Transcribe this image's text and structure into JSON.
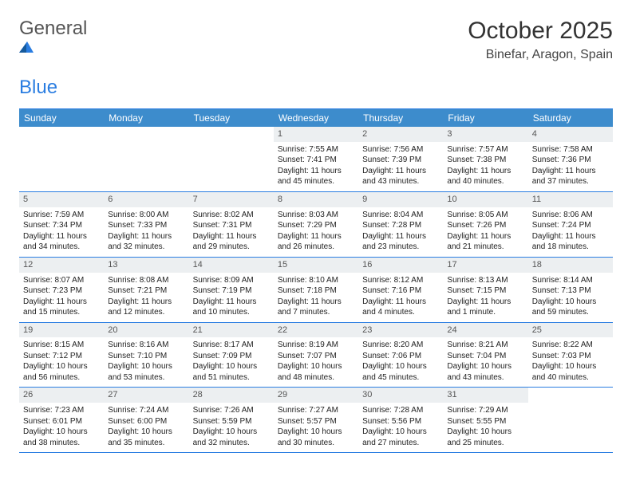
{
  "logo": {
    "word1": "General",
    "word2": "Blue"
  },
  "title": "October 2025",
  "location": "Binefar, Aragon, Spain",
  "colors": {
    "header_bg": "#3d8ccc",
    "border": "#2a7de1",
    "daynum_bg": "#eceff1",
    "text": "#333333",
    "logo_blue": "#2a7de1"
  },
  "day_labels": [
    "Sunday",
    "Monday",
    "Tuesday",
    "Wednesday",
    "Thursday",
    "Friday",
    "Saturday"
  ],
  "weeks": [
    [
      {
        "n": "",
        "rise": "",
        "set": "",
        "day": ""
      },
      {
        "n": "",
        "rise": "",
        "set": "",
        "day": ""
      },
      {
        "n": "",
        "rise": "",
        "set": "",
        "day": ""
      },
      {
        "n": "1",
        "rise": "Sunrise: 7:55 AM",
        "set": "Sunset: 7:41 PM",
        "day": "Daylight: 11 hours and 45 minutes."
      },
      {
        "n": "2",
        "rise": "Sunrise: 7:56 AM",
        "set": "Sunset: 7:39 PM",
        "day": "Daylight: 11 hours and 43 minutes."
      },
      {
        "n": "3",
        "rise": "Sunrise: 7:57 AM",
        "set": "Sunset: 7:38 PM",
        "day": "Daylight: 11 hours and 40 minutes."
      },
      {
        "n": "4",
        "rise": "Sunrise: 7:58 AM",
        "set": "Sunset: 7:36 PM",
        "day": "Daylight: 11 hours and 37 minutes."
      }
    ],
    [
      {
        "n": "5",
        "rise": "Sunrise: 7:59 AM",
        "set": "Sunset: 7:34 PM",
        "day": "Daylight: 11 hours and 34 minutes."
      },
      {
        "n": "6",
        "rise": "Sunrise: 8:00 AM",
        "set": "Sunset: 7:33 PM",
        "day": "Daylight: 11 hours and 32 minutes."
      },
      {
        "n": "7",
        "rise": "Sunrise: 8:02 AM",
        "set": "Sunset: 7:31 PM",
        "day": "Daylight: 11 hours and 29 minutes."
      },
      {
        "n": "8",
        "rise": "Sunrise: 8:03 AM",
        "set": "Sunset: 7:29 PM",
        "day": "Daylight: 11 hours and 26 minutes."
      },
      {
        "n": "9",
        "rise": "Sunrise: 8:04 AM",
        "set": "Sunset: 7:28 PM",
        "day": "Daylight: 11 hours and 23 minutes."
      },
      {
        "n": "10",
        "rise": "Sunrise: 8:05 AM",
        "set": "Sunset: 7:26 PM",
        "day": "Daylight: 11 hours and 21 minutes."
      },
      {
        "n": "11",
        "rise": "Sunrise: 8:06 AM",
        "set": "Sunset: 7:24 PM",
        "day": "Daylight: 11 hours and 18 minutes."
      }
    ],
    [
      {
        "n": "12",
        "rise": "Sunrise: 8:07 AM",
        "set": "Sunset: 7:23 PM",
        "day": "Daylight: 11 hours and 15 minutes."
      },
      {
        "n": "13",
        "rise": "Sunrise: 8:08 AM",
        "set": "Sunset: 7:21 PM",
        "day": "Daylight: 11 hours and 12 minutes."
      },
      {
        "n": "14",
        "rise": "Sunrise: 8:09 AM",
        "set": "Sunset: 7:19 PM",
        "day": "Daylight: 11 hours and 10 minutes."
      },
      {
        "n": "15",
        "rise": "Sunrise: 8:10 AM",
        "set": "Sunset: 7:18 PM",
        "day": "Daylight: 11 hours and 7 minutes."
      },
      {
        "n": "16",
        "rise": "Sunrise: 8:12 AM",
        "set": "Sunset: 7:16 PM",
        "day": "Daylight: 11 hours and 4 minutes."
      },
      {
        "n": "17",
        "rise": "Sunrise: 8:13 AM",
        "set": "Sunset: 7:15 PM",
        "day": "Daylight: 11 hours and 1 minute."
      },
      {
        "n": "18",
        "rise": "Sunrise: 8:14 AM",
        "set": "Sunset: 7:13 PM",
        "day": "Daylight: 10 hours and 59 minutes."
      }
    ],
    [
      {
        "n": "19",
        "rise": "Sunrise: 8:15 AM",
        "set": "Sunset: 7:12 PM",
        "day": "Daylight: 10 hours and 56 minutes."
      },
      {
        "n": "20",
        "rise": "Sunrise: 8:16 AM",
        "set": "Sunset: 7:10 PM",
        "day": "Daylight: 10 hours and 53 minutes."
      },
      {
        "n": "21",
        "rise": "Sunrise: 8:17 AM",
        "set": "Sunset: 7:09 PM",
        "day": "Daylight: 10 hours and 51 minutes."
      },
      {
        "n": "22",
        "rise": "Sunrise: 8:19 AM",
        "set": "Sunset: 7:07 PM",
        "day": "Daylight: 10 hours and 48 minutes."
      },
      {
        "n": "23",
        "rise": "Sunrise: 8:20 AM",
        "set": "Sunset: 7:06 PM",
        "day": "Daylight: 10 hours and 45 minutes."
      },
      {
        "n": "24",
        "rise": "Sunrise: 8:21 AM",
        "set": "Sunset: 7:04 PM",
        "day": "Daylight: 10 hours and 43 minutes."
      },
      {
        "n": "25",
        "rise": "Sunrise: 8:22 AM",
        "set": "Sunset: 7:03 PM",
        "day": "Daylight: 10 hours and 40 minutes."
      }
    ],
    [
      {
        "n": "26",
        "rise": "Sunrise: 7:23 AM",
        "set": "Sunset: 6:01 PM",
        "day": "Daylight: 10 hours and 38 minutes."
      },
      {
        "n": "27",
        "rise": "Sunrise: 7:24 AM",
        "set": "Sunset: 6:00 PM",
        "day": "Daylight: 10 hours and 35 minutes."
      },
      {
        "n": "28",
        "rise": "Sunrise: 7:26 AM",
        "set": "Sunset: 5:59 PM",
        "day": "Daylight: 10 hours and 32 minutes."
      },
      {
        "n": "29",
        "rise": "Sunrise: 7:27 AM",
        "set": "Sunset: 5:57 PM",
        "day": "Daylight: 10 hours and 30 minutes."
      },
      {
        "n": "30",
        "rise": "Sunrise: 7:28 AM",
        "set": "Sunset: 5:56 PM",
        "day": "Daylight: 10 hours and 27 minutes."
      },
      {
        "n": "31",
        "rise": "Sunrise: 7:29 AM",
        "set": "Sunset: 5:55 PM",
        "day": "Daylight: 10 hours and 25 minutes."
      },
      {
        "n": "",
        "rise": "",
        "set": "",
        "day": ""
      }
    ]
  ]
}
